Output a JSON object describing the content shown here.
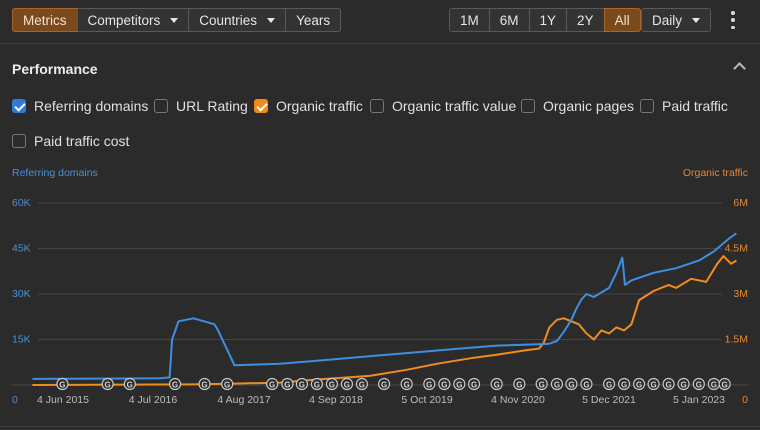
{
  "toolbar": {
    "left_buttons": [
      {
        "label": "Metrics",
        "active": true,
        "dropdown": false
      },
      {
        "label": "Competitors",
        "active": false,
        "dropdown": true
      },
      {
        "label": "Countries",
        "active": false,
        "dropdown": true
      },
      {
        "label": "Years",
        "active": false,
        "dropdown": false
      }
    ],
    "ranges": [
      {
        "label": "1M",
        "active": false
      },
      {
        "label": "6M",
        "active": false
      },
      {
        "label": "1Y",
        "active": false
      },
      {
        "label": "2Y",
        "active": false
      },
      {
        "label": "All",
        "active": true
      }
    ],
    "granularity": "Daily",
    "more_icon": "kebab-menu-icon"
  },
  "panel": {
    "title": "Performance",
    "collapse_icon": "chevron-up-icon"
  },
  "metrics": [
    {
      "label": "Referring domains",
      "checked": true,
      "color": "#3d8fe0"
    },
    {
      "label": "URL Rating",
      "checked": false
    },
    {
      "label": "Organic traffic",
      "checked": true,
      "color": "#f28c1e"
    },
    {
      "label": "Organic traffic value",
      "checked": false
    },
    {
      "label": "Organic pages",
      "checked": false
    },
    {
      "label": "Paid traffic",
      "checked": false
    },
    {
      "label": "Paid traffic cost",
      "checked": false
    }
  ],
  "chart_data": {
    "type": "line",
    "left_axis": {
      "title": "Referring domains",
      "ticks": [
        "0",
        "15K",
        "30K",
        "45K",
        "60K"
      ],
      "range": [
        0,
        60000
      ],
      "color": "#4a90d9"
    },
    "right_axis": {
      "title": "Organic traffic",
      "ticks": [
        "0",
        "1.5M",
        "3M",
        "4.5M",
        "6M"
      ],
      "range": [
        0,
        6000000
      ],
      "color": "#e8892b"
    },
    "x_ticks": [
      "4 Jun 2015",
      "4 Jul 2016",
      "4 Aug 2017",
      "4 Sep 2018",
      "5 Oct 2019",
      "4 Nov 2020",
      "5 Dec 2021",
      "5 Jan 2023"
    ],
    "grid": true,
    "series": [
      {
        "name": "Referring domains",
        "axis": "left",
        "color": "#3d8fe0",
        "x": [
          "2015-04-01",
          "2016-09-01",
          "2016-10-10",
          "2016-10-20",
          "2016-11-15",
          "2017-01-15",
          "2017-04-10",
          "2017-04-25",
          "2017-07-01",
          "2018-01-01",
          "2018-06-01",
          "2019-01-01",
          "2019-06-01",
          "2020-01-01",
          "2020-06-01",
          "2020-12-01",
          "2021-01-01",
          "2021-02-01",
          "2021-03-01",
          "2021-04-01",
          "2021-04-20",
          "2021-05-10",
          "2021-06-01",
          "2021-07-01",
          "2021-09-01",
          "2021-10-01",
          "2021-10-25",
          "2021-11-05",
          "2021-12-01",
          "2022-03-01",
          "2022-06-01",
          "2022-09-01",
          "2022-11-01",
          "2023-01-05",
          "2023-02-01"
        ],
        "values": [
          2000,
          2200,
          2500,
          15000,
          21000,
          22000,
          20000,
          18000,
          6500,
          7000,
          8000,
          9500,
          10500,
          12000,
          13000,
          13500,
          13600,
          14500,
          17500,
          21500,
          25000,
          28000,
          30000,
          29000,
          32000,
          37000,
          42000,
          33000,
          34500,
          37000,
          38500,
          41000,
          44000,
          48500,
          50000
        ]
      },
      {
        "name": "Organic traffic",
        "axis": "right",
        "color": "#f28c1e",
        "x": [
          "2015-04-01",
          "2017-01-01",
          "2017-06-01",
          "2018-01-01",
          "2018-06-01",
          "2019-01-01",
          "2019-06-01",
          "2019-10-01",
          "2020-03-01",
          "2020-06-01",
          "2020-10-01",
          "2020-11-20",
          "2020-12-10",
          "2021-01-01",
          "2021-02-01",
          "2021-03-01",
          "2021-04-01",
          "2021-05-01",
          "2021-06-01",
          "2021-07-01",
          "2021-08-01",
          "2021-09-01",
          "2021-10-01",
          "2021-11-01",
          "2021-12-01",
          "2022-01-01",
          "2022-03-01",
          "2022-05-01",
          "2022-06-01",
          "2022-08-01",
          "2022-10-01",
          "2022-11-15",
          "2022-12-10",
          "2023-01-10",
          "2023-02-01"
        ],
        "values": [
          0,
          20000,
          40000,
          80000,
          180000,
          300000,
          500000,
          700000,
          900000,
          1000000,
          1150000,
          1200000,
          1400000,
          1900000,
          2150000,
          2200000,
          2100000,
          2000000,
          1700000,
          1500000,
          1800000,
          1700000,
          1900000,
          1800000,
          2000000,
          2800000,
          3100000,
          3300000,
          3200000,
          3500000,
          3400000,
          4000000,
          4250000,
          4000000,
          4100000
        ]
      }
    ],
    "annotation_marker": "G",
    "annotation_icon": "google-update-icon",
    "annotation_dates": [
      "2015-08-01",
      "2016-02-01",
      "2016-05-01",
      "2016-11-01",
      "2017-03-01",
      "2017-06-01",
      "2017-12-01",
      "2018-02-01",
      "2018-04-01",
      "2018-06-01",
      "2018-08-01",
      "2018-10-01",
      "2018-12-01",
      "2019-03-01",
      "2019-06-01",
      "2019-09-01",
      "2019-11-01",
      "2020-01-01",
      "2020-03-01",
      "2020-06-01",
      "2020-09-01",
      "2020-12-01",
      "2021-02-01",
      "2021-04-01",
      "2021-06-01",
      "2021-09-01",
      "2021-11-01",
      "2022-01-01",
      "2022-03-01",
      "2022-05-01",
      "2022-07-01",
      "2022-09-01",
      "2022-11-01",
      "2022-12-15"
    ]
  }
}
